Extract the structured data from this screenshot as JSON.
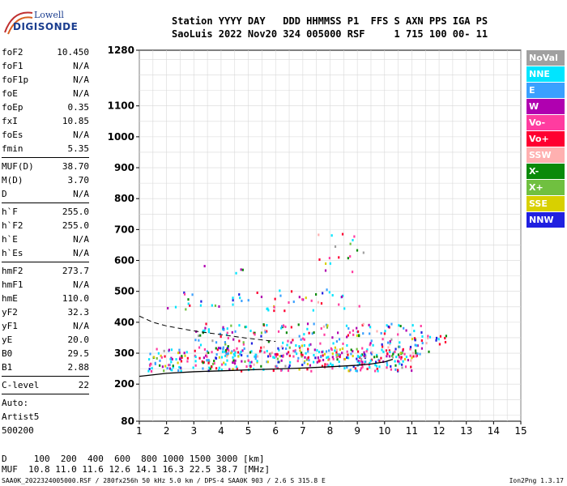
{
  "logo": {
    "line1": "Lowell",
    "line2": "DIGISONDE"
  },
  "header": {
    "line1": "Station YYYY DAY   DDD HHMMSS P1  FFS S AXN PPS IGA PS",
    "line2": "SaoLuis 2022 Nov20 324 005000 RSF     1 715 100 00- 11"
  },
  "params": [
    {
      "label": "foF2",
      "value": "10.450"
    },
    {
      "label": "foF1",
      "value": "N/A"
    },
    {
      "label": "foF1p",
      "value": "N/A"
    },
    {
      "label": "foE",
      "value": "N/A"
    },
    {
      "label": "foEp",
      "value": "0.35"
    },
    {
      "label": "fxI",
      "value": "10.85"
    },
    {
      "label": "foEs",
      "value": "N/A"
    },
    {
      "label": "fmin",
      "value": "5.35"
    },
    {
      "label": "MUF(D)",
      "value": "38.70",
      "sep": true
    },
    {
      "label": "M(D)",
      "value": "3.70"
    },
    {
      "label": "D",
      "value": "N/A"
    },
    {
      "label": "h`F",
      "value": "255.0",
      "sep": true
    },
    {
      "label": "h`F2",
      "value": "255.0"
    },
    {
      "label": "h`E",
      "value": "N/A"
    },
    {
      "label": "h`Es",
      "value": "N/A"
    },
    {
      "label": "hmF2",
      "value": "273.7",
      "sep": true
    },
    {
      "label": "hmF1",
      "value": "N/A"
    },
    {
      "label": "hmE",
      "value": "110.0"
    },
    {
      "label": "yF2",
      "value": "32.3"
    },
    {
      "label": "yF1",
      "value": "N/A"
    },
    {
      "label": "yE",
      "value": "20.0"
    },
    {
      "label": "B0",
      "value": "29.5"
    },
    {
      "label": "B1",
      "value": "2.88"
    },
    {
      "label": "C-level",
      "value": "22",
      "sep": true
    },
    {
      "label": "Auto:",
      "value": "",
      "sep": true
    },
    {
      "label": "Artist5",
      "value": ""
    },
    {
      "label": "500200",
      "value": ""
    }
  ],
  "legend": [
    {
      "label": "NoVal",
      "color": "#a0a0a0"
    },
    {
      "label": "NNE",
      "color": "#00e5ff"
    },
    {
      "label": "E",
      "color": "#3aa0ff"
    },
    {
      "label": "W",
      "color": "#b000b0"
    },
    {
      "label": "Vo-",
      "color": "#ff3ca0"
    },
    {
      "label": "Vo+",
      "color": "#ff0030"
    },
    {
      "label": "SSW",
      "color": "#ffb0b0"
    },
    {
      "label": "X-",
      "color": "#0a8a0a"
    },
    {
      "label": "X+",
      "color": "#70c040"
    },
    {
      "label": "SSE",
      "color": "#d8d000"
    },
    {
      "label": "NNW",
      "color": "#2020e0"
    }
  ],
  "bottom": {
    "line1": "D     100  200  400  600  800 1000 1500 3000 [km]",
    "line2": "MUF  10.8 11.0 11.6 12.6 14.1 16.3 22.5 38.7 [MHz]"
  },
  "footer": {
    "text": "SAA0K_2022324005000.RSF / 280fx256h 50 kHz 5.0 km / DPS-4 SAA0K 903 / 2.6 S 315.8 E",
    "version": "Ion2Png 1.3.17"
  },
  "chart_data": {
    "type": "scatter",
    "xlim": [
      1,
      15
    ],
    "ylim": [
      80,
      1280
    ],
    "xticks": [
      1,
      2,
      3,
      4,
      5,
      6,
      7,
      8,
      9,
      10,
      11,
      12,
      13,
      14,
      15
    ],
    "yticks": [
      80,
      200,
      300,
      400,
      500,
      600,
      700,
      800,
      900,
      1000,
      1100,
      1280
    ],
    "grid": true,
    "legend_placement": "right",
    "height_profile": [
      [
        1.0,
        225
      ],
      [
        2.0,
        235
      ],
      [
        3.0,
        240
      ],
      [
        4.0,
        243
      ],
      [
        5.0,
        246
      ],
      [
        6.0,
        249
      ],
      [
        7.0,
        252
      ],
      [
        8.0,
        256
      ],
      [
        9.0,
        261
      ],
      [
        9.5,
        265
      ],
      [
        10.0,
        272
      ],
      [
        10.3,
        280
      ]
    ],
    "virtual_trace": [
      [
        1.0,
        420
      ],
      [
        1.5,
        400
      ],
      [
        2.0,
        388
      ],
      [
        3.0,
        372
      ],
      [
        4.0,
        360
      ],
      [
        5.0,
        348
      ],
      [
        6.0,
        338
      ]
    ],
    "echo_regions": [
      {
        "name": "F-trace",
        "x": [
          1.3,
          11.2
        ],
        "y": [
          245,
          320
        ],
        "density": 0.95
      },
      {
        "name": "F-spread",
        "x": [
          3.0,
          11.6
        ],
        "y": [
          290,
          400
        ],
        "density": 0.45
      },
      {
        "name": "upper",
        "x": [
          2.0,
          9.2
        ],
        "y": [
          440,
          510
        ],
        "density": 0.2
      },
      {
        "name": "upper2",
        "x": [
          3.2,
          5.0
        ],
        "y": [
          560,
          590
        ],
        "density": 0.15
      },
      {
        "name": "high",
        "x": [
          7.5,
          9.2
        ],
        "y": [
          560,
          690
        ],
        "density": 0.15
      },
      {
        "name": "far",
        "x": [
          11.0,
          12.6
        ],
        "y": [
          330,
          360
        ],
        "density": 0.5
      }
    ]
  }
}
